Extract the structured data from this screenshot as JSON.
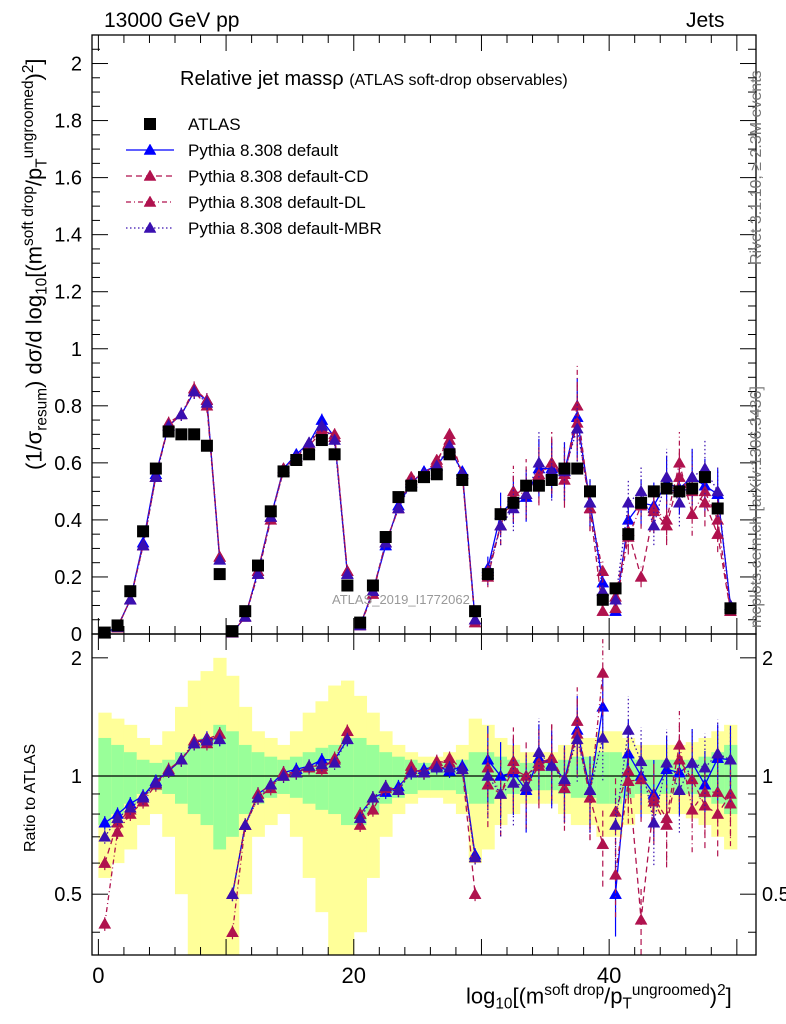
{
  "header": {
    "left": "13000 GeV pp",
    "right": "Jets"
  },
  "side_labels": {
    "rivet": "Rivet 3.1.10, ≥ 2.3M events",
    "mcplots": "mcplots.cern.ch [arXiv:1306.3436]"
  },
  "chart_data": {
    "type": "scatter",
    "title_main": "Relative jet massρ",
    "title_sub": "(ATLAS soft-drop observables)",
    "watermark": "ATLAS_2019_I1772062",
    "ylabel_main": "(1/σresum) dσ/d log10[(msoft drop/pTungroomed)2]",
    "ylabel_ratio": "Ratio to ATLAS",
    "xlabel": "log10[(msoft drop/pTungroomed)2]",
    "xlim": [
      -0.5,
      51.5
    ],
    "ylim_main": [
      0,
      2.1
    ],
    "ylim_ratio": [
      0.35,
      2.3
    ],
    "x_ticks": [
      "0",
      "20",
      "40"
    ],
    "y_ticks_main": [
      "0",
      "0.2",
      "0.4",
      "0.6",
      "0.8",
      "1",
      "1.2",
      "1.4",
      "1.6",
      "1.8",
      "2"
    ],
    "y_ticks_ratio": [
      "0.5",
      "1",
      "2"
    ],
    "legend": [
      "ATLAS",
      "Pythia 8.308 default",
      "Pythia 8.308 default-CD",
      "Pythia 8.308 default-DL",
      "Pythia 8.308 default-MBR"
    ],
    "x": [
      0.5,
      1.5,
      2.5,
      3.5,
      4.5,
      5.5,
      6.5,
      7.5,
      8.5,
      9.5,
      10.5,
      11.5,
      12.5,
      13.5,
      14.5,
      15.5,
      16.5,
      17.5,
      18.5,
      19.5,
      20.5,
      21.5,
      22.5,
      23.5,
      24.5,
      25.5,
      26.5,
      27.5,
      28.5,
      29.5,
      30.5,
      31.5,
      32.5,
      33.5,
      34.5,
      35.5,
      36.5,
      37.5,
      38.5,
      39.5,
      40.5,
      41.5,
      42.5,
      43.5,
      44.5,
      45.5,
      46.5,
      47.5,
      48.5,
      49.5
    ],
    "series": [
      {
        "name": "ATLAS",
        "color": "#000000",
        "values": [
          0.005,
          0.03,
          0.15,
          0.36,
          0.58,
          0.71,
          0.7,
          0.7,
          0.66,
          0.21,
          0.01,
          0.08,
          0.24,
          0.43,
          0.57,
          0.61,
          0.63,
          0.68,
          0.63,
          0.17,
          0.04,
          0.17,
          0.34,
          0.48,
          0.52,
          0.55,
          0.56,
          0.63,
          0.54,
          0.08,
          0.21,
          0.42,
          0.46,
          0.52,
          0.52,
          0.54,
          0.58,
          0.58,
          0.5,
          0.12,
          0.16,
          0.35,
          0.46,
          0.5,
          0.51,
          0.5,
          0.51,
          0.55,
          0.44,
          0.09
        ],
        "ratio_band_inner": [
          0.25,
          0.2,
          0.15,
          0.1,
          0.08,
          0.1,
          0.15,
          0.2,
          0.25,
          0.35,
          0.3,
          0.2,
          0.15,
          0.12,
          0.1,
          0.12,
          0.15,
          0.18,
          0.2,
          0.25,
          0.25,
          0.2,
          0.15,
          0.12,
          0.1,
          0.08,
          0.08,
          0.08,
          0.1,
          0.15,
          0.15,
          0.12,
          0.1,
          0.08,
          0.08,
          0.08,
          0.1,
          0.12,
          0.12,
          0.15,
          0.15,
          0.12,
          0.1,
          0.1,
          0.1,
          0.1,
          0.1,
          0.12,
          0.15,
          0.2
        ],
        "ratio_band_outer": [
          0.45,
          0.4,
          0.35,
          0.25,
          0.2,
          0.3,
          0.5,
          0.75,
          0.85,
          1.0,
          0.8,
          0.5,
          0.3,
          0.25,
          0.2,
          0.3,
          0.45,
          0.55,
          0.7,
          0.75,
          0.6,
          0.45,
          0.3,
          0.2,
          0.15,
          0.12,
          0.12,
          0.15,
          0.2,
          0.4,
          0.35,
          0.25,
          0.2,
          0.15,
          0.15,
          0.15,
          0.2,
          0.25,
          0.25,
          0.3,
          0.3,
          0.25,
          0.2,
          0.2,
          0.2,
          0.2,
          0.22,
          0.25,
          0.3,
          0.35
        ]
      },
      {
        "name": "Pythia 8.308 default",
        "color": "#0000ff",
        "style": "solid",
        "values": [
          0.003,
          0.025,
          0.12,
          0.32,
          0.56,
          0.73,
          0.77,
          0.85,
          0.82,
          0.26,
          0.005,
          0.06,
          0.22,
          0.41,
          0.58,
          0.63,
          0.67,
          0.75,
          0.69,
          0.21,
          0.03,
          0.15,
          0.31,
          0.45,
          0.53,
          0.57,
          0.59,
          0.65,
          0.57,
          0.05,
          0.23,
          0.42,
          0.47,
          0.48,
          0.58,
          0.58,
          0.57,
          0.76,
          0.46,
          0.18,
          0.08,
          0.4,
          0.46,
          0.45,
          0.53,
          0.51,
          0.55,
          0.52,
          0.49,
          0.1
        ],
        "ratio": [
          0.76,
          0.8,
          0.85,
          0.89,
          0.97,
          1.03,
          1.1,
          1.21,
          1.25,
          1.24,
          0.5,
          0.75,
          0.9,
          0.95,
          1.02,
          1.04,
          1.06,
          1.1,
          1.1,
          1.24,
          0.8,
          0.88,
          0.91,
          0.94,
          1.02,
          1.04,
          1.06,
          1.03,
          1.06,
          0.63,
          1.1,
          1.0,
          1.02,
          0.92,
          1.11,
          1.07,
          0.98,
          1.31,
          0.92,
          1.5,
          0.5,
          1.14,
          1.0,
          0.9,
          1.04,
          1.02,
          1.08,
          0.95,
          1.11,
          1.1
        ]
      },
      {
        "name": "Pythia 8.308 default-CD",
        "color": "#b0124e",
        "style": "dashed",
        "values": [
          0.003,
          0.025,
          0.12,
          0.31,
          0.55,
          0.74,
          0.77,
          0.85,
          0.8,
          0.27,
          0.005,
          0.06,
          0.22,
          0.41,
          0.57,
          0.62,
          0.66,
          0.71,
          0.7,
          0.22,
          0.03,
          0.15,
          0.32,
          0.44,
          0.54,
          0.56,
          0.6,
          0.7,
          0.56,
          0.04,
          0.2,
          0.38,
          0.48,
          0.52,
          0.56,
          0.6,
          0.56,
          0.74,
          0.44,
          0.08,
          0.13,
          0.36,
          0.2,
          0.43,
          0.38,
          0.55,
          0.5,
          0.46,
          0.35,
          0.08
        ],
        "ratio": [
          0.6,
          0.76,
          0.82,
          0.88,
          0.96,
          1.04,
          1.1,
          1.21,
          1.21,
          1.28,
          0.5,
          0.75,
          0.9,
          0.95,
          1.0,
          1.02,
          1.05,
          1.04,
          1.11,
          1.3,
          0.8,
          0.88,
          0.93,
          0.92,
          1.04,
          1.02,
          1.07,
          1.11,
          1.04,
          0.5,
          0.95,
          0.9,
          1.04,
          1.0,
          1.08,
          1.11,
          0.97,
          1.28,
          0.88,
          0.67,
          0.81,
          1.03,
          0.43,
          0.86,
          0.75,
          1.1,
          0.98,
          0.84,
          0.8,
          0.9
        ]
      },
      {
        "name": "Pythia 8.308 default-DL",
        "color": "#b0124e",
        "style": "dash-dot",
        "values": [
          0.002,
          0.022,
          0.12,
          0.31,
          0.55,
          0.73,
          0.77,
          0.86,
          0.82,
          0.27,
          0.004,
          0.06,
          0.21,
          0.4,
          0.58,
          0.62,
          0.67,
          0.72,
          0.69,
          0.22,
          0.03,
          0.14,
          0.32,
          0.44,
          0.55,
          0.56,
          0.61,
          0.68,
          0.56,
          0.05,
          0.22,
          0.38,
          0.5,
          0.49,
          0.55,
          0.6,
          0.54,
          0.8,
          0.44,
          0.22,
          0.09,
          0.34,
          0.45,
          0.44,
          0.4,
          0.6,
          0.42,
          0.5,
          0.4,
          0.08
        ],
        "ratio": [
          0.42,
          0.72,
          0.8,
          0.86,
          0.95,
          1.03,
          1.1,
          1.23,
          1.24,
          1.28,
          0.4,
          0.75,
          0.88,
          0.93,
          1.02,
          1.02,
          1.06,
          1.06,
          1.1,
          1.3,
          0.75,
          0.82,
          0.94,
          0.92,
          1.06,
          1.02,
          1.09,
          1.08,
          1.04,
          0.62,
          1.05,
          0.9,
          1.09,
          0.94,
          1.06,
          1.11,
          0.93,
          1.38,
          0.88,
          1.83,
          0.56,
          0.97,
          0.98,
          0.88,
          0.78,
          1.2,
          0.82,
          0.91,
          0.91,
          0.85
        ]
      },
      {
        "name": "Pythia 8.308 default-MBR",
        "color": "#3a10b0",
        "style": "dotted",
        "values": [
          0.003,
          0.024,
          0.12,
          0.31,
          0.55,
          0.73,
          0.77,
          0.85,
          0.81,
          0.26,
          0.005,
          0.06,
          0.21,
          0.41,
          0.57,
          0.62,
          0.67,
          0.73,
          0.68,
          0.21,
          0.03,
          0.15,
          0.32,
          0.44,
          0.53,
          0.56,
          0.59,
          0.66,
          0.56,
          0.05,
          0.21,
          0.38,
          0.44,
          0.49,
          0.6,
          0.57,
          0.57,
          0.72,
          0.46,
          0.15,
          0.12,
          0.46,
          0.5,
          0.38,
          0.55,
          0.46,
          0.55,
          0.58,
          0.5,
          0.1
        ],
        "ratio": [
          0.7,
          0.78,
          0.83,
          0.88,
          0.96,
          1.03,
          1.1,
          1.21,
          1.23,
          1.24,
          0.5,
          0.75,
          0.88,
          0.95,
          1.0,
          1.02,
          1.06,
          1.07,
          1.08,
          1.24,
          0.78,
          0.88,
          0.94,
          0.92,
          1.02,
          1.02,
          1.05,
          1.05,
          1.04,
          0.62,
          1.0,
          0.9,
          0.96,
          0.94,
          1.15,
          1.06,
          0.98,
          1.24,
          0.92,
          1.25,
          0.75,
          1.31,
          1.09,
          0.76,
          1.08,
          0.92,
          1.08,
          1.05,
          1.14,
          1.1
        ]
      }
    ]
  }
}
